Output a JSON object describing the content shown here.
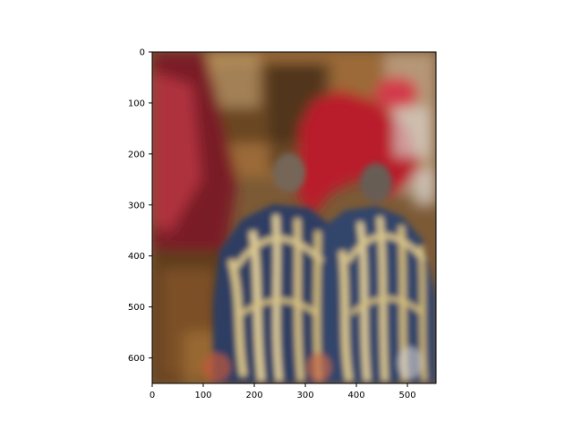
{
  "chart_data": {
    "type": "heatmap",
    "title": "",
    "xlabel": "",
    "ylabel": "",
    "xlim": [
      0,
      556
    ],
    "ylim": [
      650,
      0
    ],
    "x_ticks": [
      0,
      100,
      200,
      300,
      400,
      500
    ],
    "y_ticks": [
      0,
      100,
      200,
      300,
      400,
      500,
      600
    ],
    "x_tick_labels": [
      "0",
      "100",
      "200",
      "300",
      "400",
      "500"
    ],
    "y_tick_labels": [
      "0",
      "100",
      "200",
      "300",
      "400",
      "500",
      "600"
    ],
    "grid": false,
    "legend": "none",
    "image_content": "blurred photograph",
    "image_regions": [
      {
        "name": "backdrop-top",
        "x": [
          0,
          556
        ],
        "y": [
          0,
          260
        ],
        "color": "#9a6a3a"
      },
      {
        "name": "left-red-figure",
        "x": [
          0,
          160
        ],
        "y": [
          0,
          420
        ],
        "color": "#7a1f26"
      },
      {
        "name": "right-red-figure",
        "x": [
          260,
          520
        ],
        "y": [
          70,
          260
        ],
        "color": "#b81d2b"
      },
      {
        "name": "red-hat",
        "x": [
          430,
          500
        ],
        "y": [
          50,
          110
        ],
        "color": "#c92b3b"
      },
      {
        "name": "lower-left-warm",
        "x": [
          0,
          180
        ],
        "y": [
          420,
          650
        ],
        "color": "#6a4320"
      },
      {
        "name": "left-head",
        "x": [
          250,
          320
        ],
        "y": [
          200,
          300
        ],
        "color": "#7c6d60"
      },
      {
        "name": "right-head",
        "x": [
          400,
          470
        ],
        "y": [
          220,
          320
        ],
        "color": "#6c6258"
      },
      {
        "name": "left-navy-uniform",
        "x": [
          140,
          390
        ],
        "y": [
          300,
          650
        ],
        "color": "#2f3f63"
      },
      {
        "name": "right-navy-uniform",
        "x": [
          340,
          556
        ],
        "y": [
          320,
          650
        ],
        "color": "#34446a"
      }
    ],
    "palette": {
      "axis": "#000000",
      "background": "#ffffff"
    }
  }
}
